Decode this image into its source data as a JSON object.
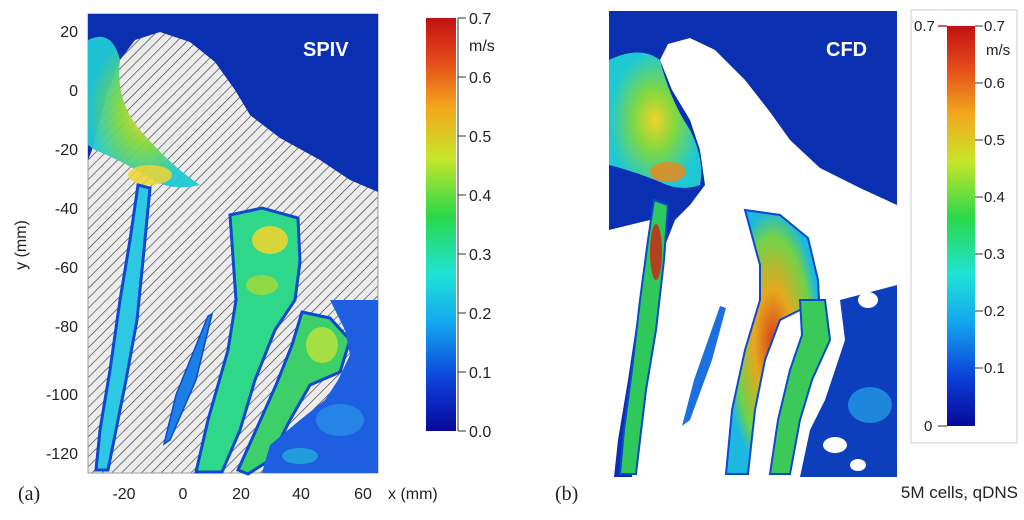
{
  "panel_a": {
    "label": "(a)",
    "title": "SPIV",
    "ylabel": "y (mm)",
    "xlabel": "x (mm)",
    "xticks": [
      "-20",
      "0",
      "20",
      "40",
      "60"
    ],
    "yticks": [
      "20",
      "0",
      "-20",
      "-40",
      "-60",
      "-80",
      "-100",
      "-120"
    ],
    "colorbar_unit": "m/s",
    "colorbar_ticks": [
      "0.7",
      "0.6",
      "0.5",
      "0.4",
      "0.3",
      "0.2",
      "0.1",
      "0.0"
    ]
  },
  "panel_b": {
    "label": "(b)",
    "title": "CFD",
    "caption": "5M cells, qDNS",
    "colorbar_unit": "m/s",
    "colorbar_ticks": [
      "0.7",
      "0.6",
      "0.5",
      "0.4",
      "0.3",
      "0.2",
      "0.1"
    ],
    "colorbar_top": "0.7",
    "colorbar_bottom": "0"
  },
  "colors": {
    "background_flow": "#0a2fb0",
    "colormap": [
      "#08089a",
      "#0b3fd8",
      "#14a6f0",
      "#1fe3d6",
      "#2ad84a",
      "#c7e62a",
      "#f3a81c",
      "#e4481a",
      "#c01010"
    ]
  },
  "chart_data": [
    {
      "type": "heatmap",
      "title": "SPIV",
      "xlabel": "x (mm)",
      "ylabel": "y (mm)",
      "xlim": [
        -32,
        64
      ],
      "ylim": [
        -128,
        26
      ],
      "xticks": [
        -20,
        0,
        20,
        40,
        60
      ],
      "yticks": [
        20,
        0,
        -20,
        -40,
        -60,
        -80,
        -100,
        -120
      ],
      "colorbar": {
        "unit": "m/s",
        "range": [
          0.0,
          0.7
        ],
        "ticks": [
          0.0,
          0.1,
          0.2,
          0.3,
          0.4,
          0.5,
          0.6,
          0.7
        ]
      }
    },
    {
      "type": "heatmap",
      "title": "CFD",
      "colorbar": {
        "unit": "m/s",
        "range": [
          0.0,
          0.7
        ],
        "ticks": [
          0.0,
          0.1,
          0.2,
          0.3,
          0.4,
          0.5,
          0.6,
          0.7
        ]
      }
    }
  ]
}
